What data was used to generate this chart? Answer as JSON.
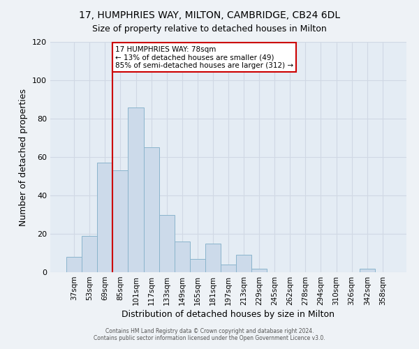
{
  "title": "17, HUMPHRIES WAY, MILTON, CAMBRIDGE, CB24 6DL",
  "subtitle": "Size of property relative to detached houses in Milton",
  "xlabel": "Distribution of detached houses by size in Milton",
  "ylabel": "Number of detached properties",
  "categories": [
    "37sqm",
    "53sqm",
    "69sqm",
    "85sqm",
    "101sqm",
    "117sqm",
    "133sqm",
    "149sqm",
    "165sqm",
    "181sqm",
    "197sqm",
    "213sqm",
    "229sqm",
    "245sqm",
    "262sqm",
    "278sqm",
    "294sqm",
    "310sqm",
    "326sqm",
    "342sqm",
    "358sqm"
  ],
  "values": [
    8,
    19,
    57,
    53,
    86,
    65,
    30,
    16,
    7,
    15,
    4,
    9,
    2,
    0,
    0,
    0,
    0,
    0,
    0,
    2,
    0
  ],
  "bar_color": "#ccdaea",
  "bar_edge_color": "#8ab4cc",
  "bar_linewidth": 0.7,
  "vline_color": "#cc0000",
  "annotation_title": "17 HUMPHRIES WAY: 78sqm",
  "annotation_line1": "← 13% of detached houses are smaller (49)",
  "annotation_line2": "85% of semi-detached houses are larger (312) →",
  "annotation_box_color": "#cc0000",
  "ylim": [
    0,
    120
  ],
  "yticks": [
    0,
    20,
    40,
    60,
    80,
    100,
    120
  ],
  "footer1": "Contains HM Land Registry data © Crown copyright and database right 2024.",
  "footer2": "Contains public sector information licensed under the Open Government Licence v3.0.",
  "bg_color": "#eef2f6",
  "plot_bg_color": "#e4ecf4",
  "grid_color": "#d0d8e4"
}
